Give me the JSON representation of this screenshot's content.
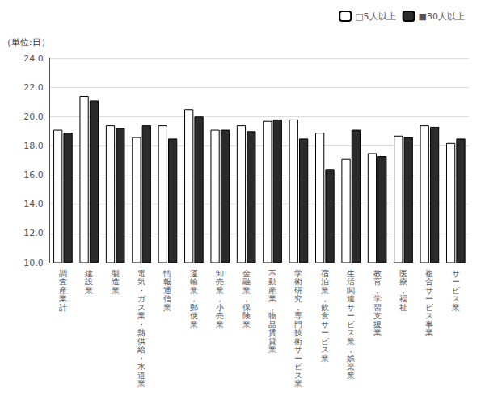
{
  "chart_data": {
    "type": "bar",
    "ylabel": "（単位:日）",
    "categories": [
      "調査産業計",
      "建設業",
      "製造業",
      "電気・ガス業・熱供給・水道業",
      "情報通信業",
      "運輸業，郵便業",
      "卸売業，小売業",
      "金融業，保険業",
      "不動産業，物品賃貸業",
      "学術研究，専門技術サービス業",
      "宿泊業，飲食サービス業",
      "生活関連サービス業，娯楽業",
      "教育，学習支援業",
      "医療，福祉",
      "複合サービス事業",
      "サービス業"
    ],
    "series": [
      {
        "name": "□5人以上",
        "color": "#ffffff",
        "values": [
          19.1,
          21.4,
          19.4,
          18.6,
          19.4,
          20.5,
          19.1,
          19.4,
          19.7,
          19.8,
          18.9,
          17.1,
          17.5,
          18.7,
          19.4,
          18.2
        ]
      },
      {
        "name": "■30人以上",
        "color": "#2a2a2a",
        "values": [
          18.9,
          21.1,
          19.2,
          19.4,
          18.5,
          20.0,
          19.1,
          19.0,
          19.8,
          18.5,
          16.4,
          19.1,
          17.3,
          18.6,
          19.3,
          18.5
        ]
      }
    ],
    "ylim": [
      10.0,
      24.0
    ],
    "yticks": [
      {
        "value": 10.0,
        "label": "10.0"
      },
      {
        "value": 12.0,
        "label": "12.0"
      },
      {
        "value": 14.0,
        "label": "14.0"
      },
      {
        "value": 16.0,
        "label": "16.0"
      },
      {
        "value": 18.0,
        "label": "18.0"
      },
      {
        "value": 20.0,
        "label": "20.0"
      },
      {
        "value": 22.0,
        "label": "22.0"
      },
      {
        "value": 24.0,
        "label": "24.0"
      }
    ],
    "grid": true,
    "legend": "upper right"
  }
}
